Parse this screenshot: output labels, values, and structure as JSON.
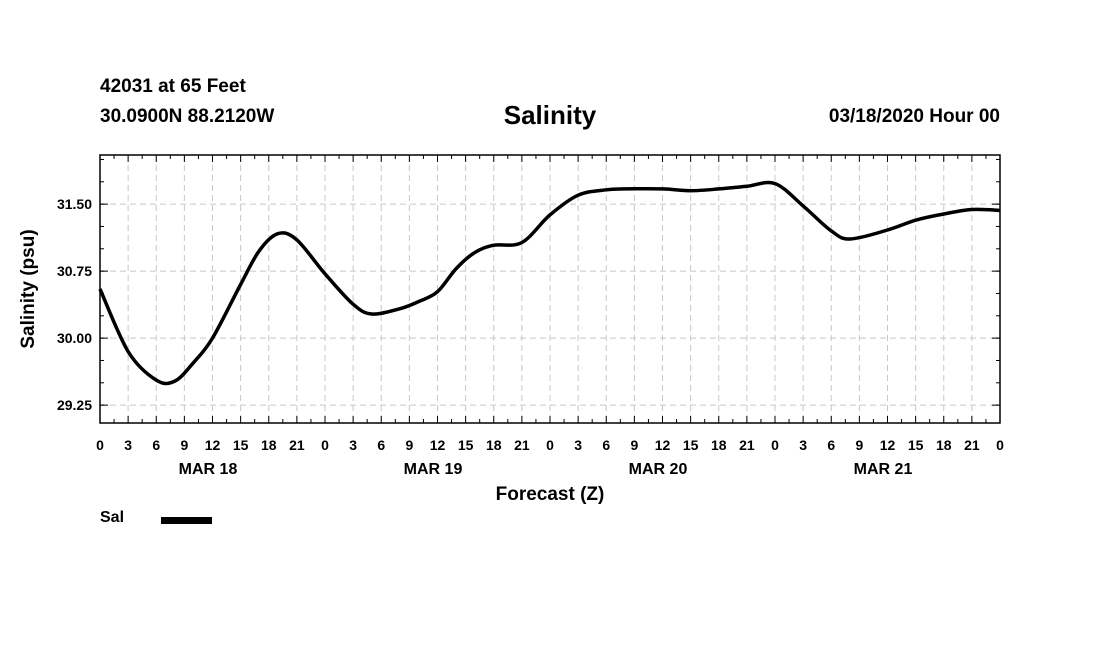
{
  "header": {
    "station": "42031 at 65 Feet",
    "coords": "30.0900N 88.2120W",
    "title": "Salinity",
    "run": "03/18/2020 Hour 00"
  },
  "legend": {
    "label": "Sal",
    "color": "#000000"
  },
  "chart_data": {
    "type": "line",
    "title": "Salinity",
    "xlabel": "Forecast (Z)",
    "ylabel": "Salinity (psu)",
    "xlim": [
      0,
      96
    ],
    "ylim": [
      29.05,
      32.05
    ],
    "yticks": [
      "29.25",
      "30.00",
      "30.75",
      "31.50"
    ],
    "x_tick_labels": [
      "0",
      "3",
      "6",
      "9",
      "12",
      "15",
      "18",
      "21",
      "0",
      "3",
      "6",
      "9",
      "12",
      "15",
      "18",
      "21",
      "0",
      "3",
      "6",
      "9",
      "12",
      "15",
      "18",
      "21",
      "0",
      "3",
      "6",
      "9",
      "12",
      "15",
      "18",
      "21",
      "0"
    ],
    "day_labels": [
      "MAR 18",
      "MAR 19",
      "MAR 20",
      "MAR 21"
    ],
    "grid": true,
    "legend_position": "bottom-left",
    "series": [
      {
        "name": "Sal",
        "x": [
          0,
          3,
          6,
          8,
          10,
          12,
          15,
          17,
          19,
          21,
          24,
          27,
          29,
          32,
          34,
          36,
          38,
          40,
          42,
          45,
          48,
          51,
          54,
          56,
          60,
          63,
          66,
          69,
          72,
          75,
          78,
          80,
          84,
          87,
          90,
          93,
          96
        ],
        "y": [
          30.55,
          29.85,
          29.53,
          29.52,
          29.73,
          30.0,
          30.6,
          30.98,
          31.17,
          31.1,
          30.72,
          30.38,
          30.27,
          30.33,
          30.41,
          30.52,
          30.78,
          30.96,
          31.04,
          31.07,
          31.38,
          31.6,
          31.66,
          31.67,
          31.67,
          31.65,
          31.67,
          31.7,
          31.73,
          31.48,
          31.2,
          31.11,
          31.21,
          31.32,
          31.39,
          31.44,
          31.43
        ]
      }
    ]
  }
}
